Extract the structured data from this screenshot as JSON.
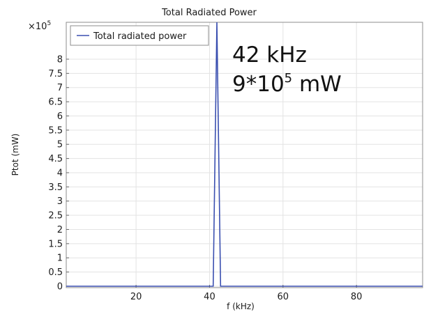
{
  "chart_data": {
    "type": "line",
    "title": "Total Radiated Power",
    "xlabel": "f (kHz)",
    "ylabel": "Ptot (mW)",
    "y_multiplier": "×10",
    "y_multiplier_exp": "5",
    "xlim": [
      1,
      98
    ],
    "ylim": [
      -0.05,
      9.3
    ],
    "xticks": [
      20,
      40,
      60,
      80
    ],
    "yticks": [
      0,
      0.5,
      1,
      1.5,
      2,
      2.5,
      3,
      3.5,
      4,
      4.5,
      5,
      5.5,
      6,
      6.5,
      7,
      7.5,
      8
    ],
    "grid": true,
    "legend_position": "top-left",
    "series": [
      {
        "name": "Total radiated power",
        "color": "#3a4fb0",
        "x": [
          1,
          41,
          42,
          43,
          98
        ],
        "y": [
          0,
          0,
          9.3,
          0,
          0
        ]
      }
    ],
    "annotation": {
      "line1": "42 kHz",
      "line2_base": "9*10",
      "line2_exp": "5",
      "line2_unit": " mW"
    }
  }
}
